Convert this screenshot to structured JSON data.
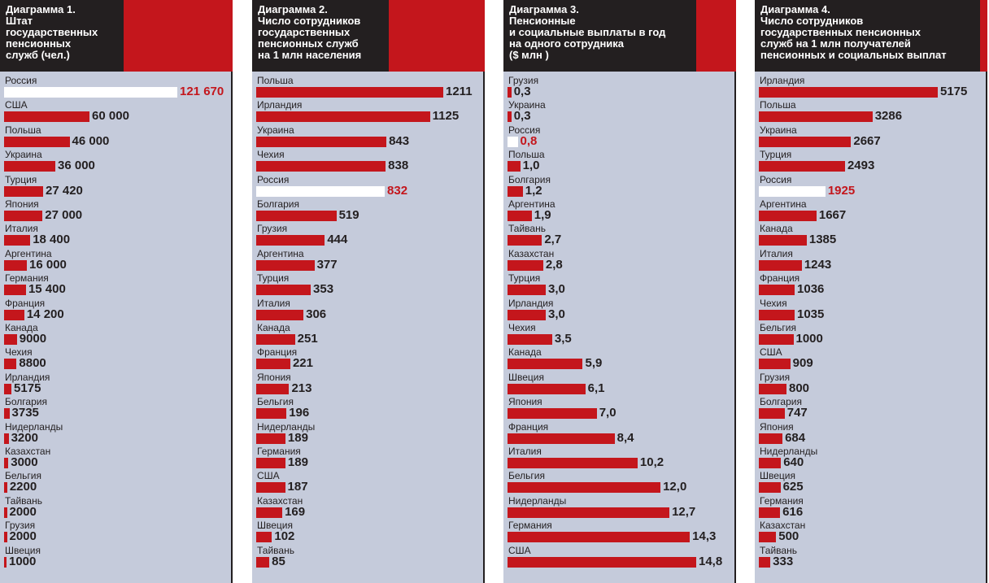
{
  "colors": {
    "bar": "#c4161c",
    "highlight_bar": "#ffffff",
    "highlight_text": "#c4161c",
    "plot_bg": "#c5cbdb",
    "header_bg": "#231f20"
  },
  "chart_data": [
    {
      "type": "bar",
      "orientation": "horizontal",
      "title": "Диаграмма 1.\nШтат\nгосударственных\nпенсионных\nслужб (чел.)",
      "highlight": "Россия",
      "categories": [
        "Россия",
        "США",
        "Польша",
        "Украина",
        "Турция",
        "Япония",
        "Италия",
        "Аргентина",
        "Германия",
        "Франция",
        "Канада",
        "Чехия",
        "Ирландия",
        "Болгария",
        "Нидерланды",
        "Казахстан",
        "Бельгия",
        "Тайвань",
        "Грузия",
        "Швеция"
      ],
      "values": [
        121670,
        60000,
        46000,
        36000,
        27420,
        27000,
        18400,
        16000,
        15400,
        14200,
        9000,
        8800,
        5175,
        3735,
        3200,
        3000,
        2200,
        2000,
        2000,
        1000
      ],
      "value_labels": [
        "121 670",
        "60 000",
        "46 000",
        "36 000",
        "27 420",
        "27 000",
        "18 400",
        "16 000",
        "15 400",
        "14 200",
        "9000",
        "8800",
        "5175",
        "3735",
        "3200",
        "3000",
        "2200",
        "2000",
        "2000",
        "1000"
      ]
    },
    {
      "type": "bar",
      "orientation": "horizontal",
      "title": "Диаграмма 2.\nЧисло сотрудников\nгосударственных\nпенсионных служб\nна 1 млн населения",
      "highlight": "Россия",
      "categories": [
        "Польша",
        "Ирландия",
        "Украина",
        "Чехия",
        "Россия",
        "Болгария",
        "Грузия",
        "Аргентина",
        "Турция",
        "Италия",
        "Канада",
        "Франция",
        "Япония",
        "Бельгия",
        "Нидерланды",
        "Германия",
        "США",
        "Казахстан",
        "Швеция",
        "Тайвань"
      ],
      "values": [
        1211,
        1125,
        843,
        838,
        832,
        519,
        444,
        377,
        353,
        306,
        251,
        221,
        213,
        196,
        189,
        189,
        187,
        169,
        102,
        85
      ],
      "value_labels": [
        "1211",
        "1125",
        "843",
        "838",
        "832",
        "519",
        "444",
        "377",
        "353",
        "306",
        "251",
        "221",
        "213",
        "196",
        "189",
        "189",
        "187",
        "169",
        "102",
        "85"
      ]
    },
    {
      "type": "bar",
      "orientation": "horizontal",
      "title": "Диаграмма 3.\nПенсионные\nи социальные выплаты в год\nна одного сотрудника\n($ млн )",
      "highlight": "Россия",
      "categories": [
        "Грузия",
        "Украина",
        "Россия",
        "Польша",
        "Болгария",
        "Аргентина",
        "Тайвань",
        "Казахстан",
        "Турция",
        "Ирландия",
        "Чехия",
        "Канада",
        "Швеция",
        "Япония",
        "Франция",
        "Италия",
        "Бельгия",
        "Нидерланды",
        "Германия",
        "США"
      ],
      "values": [
        0.3,
        0.3,
        0.8,
        1.0,
        1.2,
        1.9,
        2.7,
        2.8,
        3.0,
        3.0,
        3.5,
        5.9,
        6.1,
        7.0,
        8.4,
        10.2,
        12.0,
        12.7,
        14.3,
        14.8
      ],
      "value_labels": [
        "0,3",
        "0,3",
        "0,8",
        "1,0",
        "1,2",
        "1,9",
        "2,7",
        "2,8",
        "3,0",
        "3,0",
        "3,5",
        "5,9",
        "6,1",
        "7,0",
        "8,4",
        "10,2",
        "12,0",
        "12,7",
        "14,3",
        "14,8"
      ]
    },
    {
      "type": "bar",
      "orientation": "horizontal",
      "title": "Диаграмма 4.\nЧисло сотрудников\nгосударственных пенсионных\nслужб на 1 млн получателей\nпенсионных и социальных выплат",
      "highlight": "Россия",
      "categories": [
        "Ирландия",
        "Польша",
        "Украина",
        "Турция",
        "Россия",
        "Аргентина",
        "Канада",
        "Италия",
        "Франция",
        "Чехия",
        "Бельгия",
        "США",
        "Грузия",
        "Болгария",
        "Япония",
        "Нидерланды",
        "Швеция",
        "Германия",
        "Казахстан",
        "Тайвань"
      ],
      "values": [
        5175,
        3286,
        2667,
        2493,
        1925,
        1667,
        1385,
        1243,
        1036,
        1035,
        1000,
        909,
        800,
        747,
        684,
        640,
        625,
        616,
        500,
        333
      ],
      "value_labels": [
        "5175",
        "3286",
        "2667",
        "2493",
        "1925",
        "1667",
        "1385",
        "1243",
        "1036",
        "1035",
        "1000",
        "909",
        "800",
        "747",
        "684",
        "640",
        "625",
        "616",
        "500",
        "333"
      ]
    }
  ]
}
